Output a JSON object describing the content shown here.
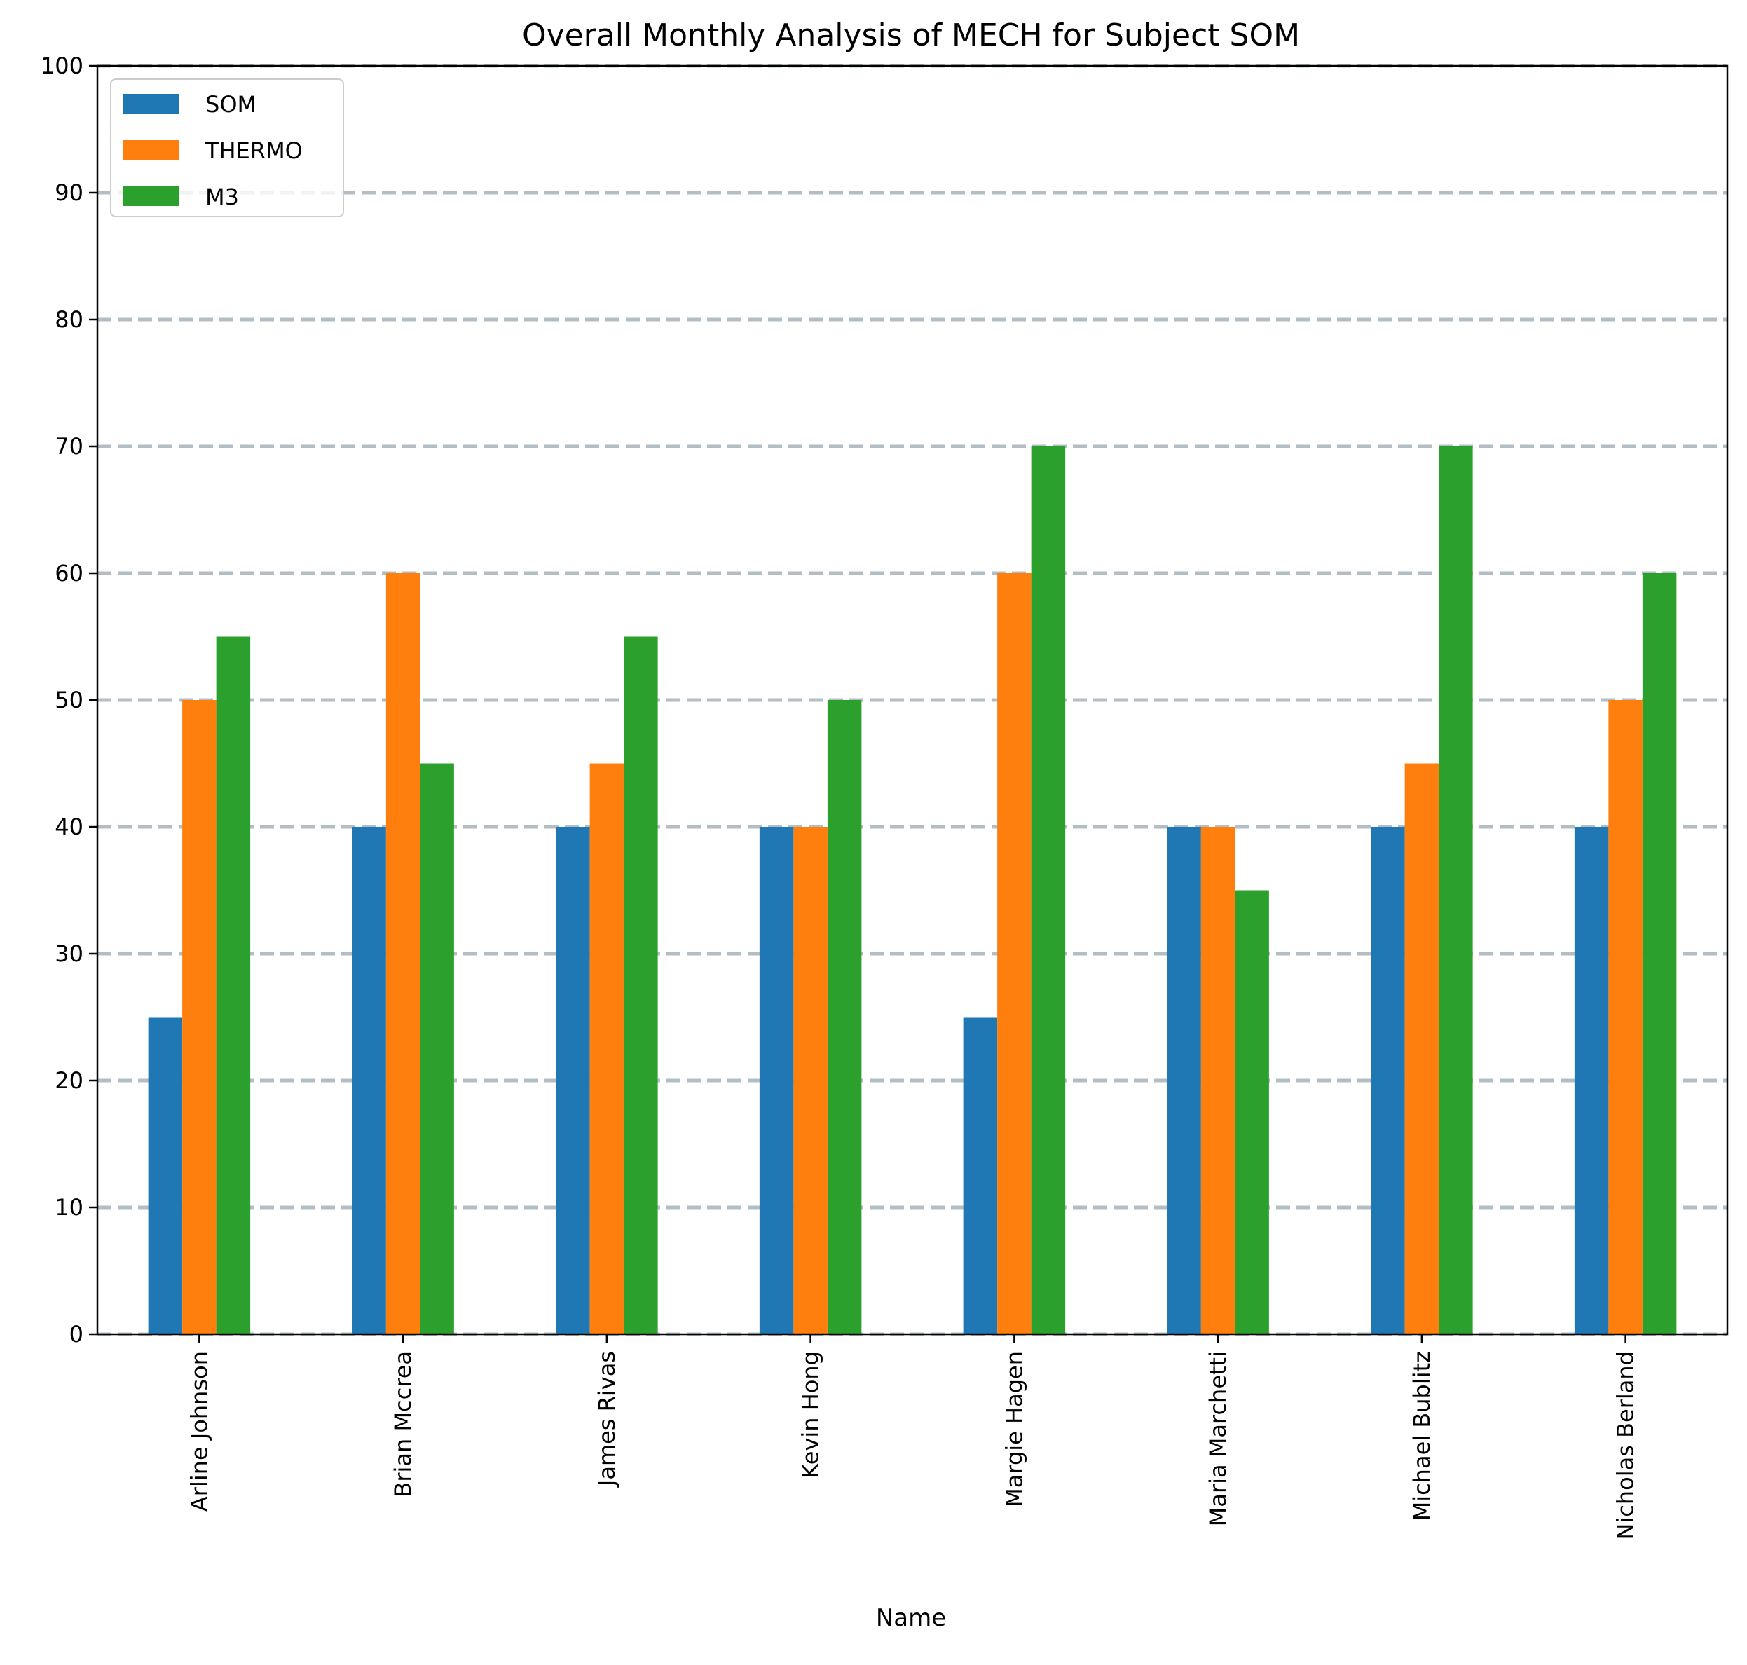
{
  "chart_data": {
    "type": "bar",
    "title": "Overall Monthly Analysis of MECH for Subject SOM",
    "xlabel": "Name",
    "ylabel": "",
    "ylim": [
      0,
      100
    ],
    "yticks": [
      0,
      10,
      20,
      30,
      40,
      50,
      60,
      70,
      80,
      90,
      100
    ],
    "grid": "horizontal dashed",
    "legend_position": "top-left",
    "categories": [
      "Arline Johnson",
      "Brian Mccrea",
      "James Rivas",
      "Kevin Hong",
      "Margie Hagen",
      "Maria Marchetti",
      "Michael Bublitz",
      "Nicholas Berland"
    ],
    "series": [
      {
        "name": "SOM",
        "color": "#1f77b4",
        "values": [
          25,
          40,
          40,
          40,
          25,
          40,
          40,
          40
        ]
      },
      {
        "name": "THERMO",
        "color": "#ff7f0e",
        "values": [
          50,
          60,
          45,
          40,
          60,
          40,
          45,
          50
        ]
      },
      {
        "name": "M3",
        "color": "#2ca02c",
        "values": [
          55,
          45,
          55,
          50,
          70,
          35,
          70,
          60
        ]
      }
    ],
    "grid_color": "#b2bec3"
  }
}
